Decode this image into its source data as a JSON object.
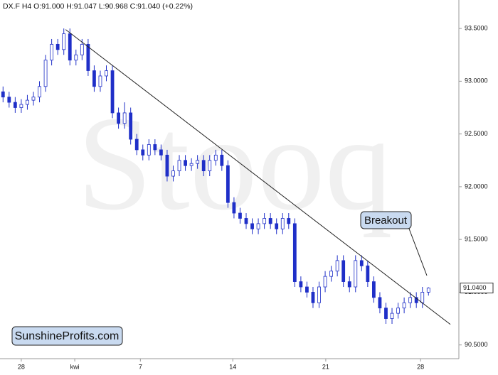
{
  "chart_data": {
    "type": "candlestick",
    "title": "DX.F  H4  O:91.000  H:91.047  L:90.968  C:91.040  (+0.22%)",
    "watermark": "Stooq",
    "color": "#1f2fc8",
    "xlim": [
      -0.5,
      75
    ],
    "xticks": [
      {
        "value": 3,
        "label": "28"
      },
      {
        "value": 11.8,
        "label": "kwi"
      },
      {
        "value": 22.6,
        "label": "7"
      },
      {
        "value": 37.8,
        "label": "14"
      },
      {
        "value": 53.1,
        "label": "21"
      },
      {
        "value": 68.7,
        "label": "28"
      }
    ],
    "ylim": [
      90.37,
      93.77
    ],
    "yticks": [
      {
        "value": 90.5,
        "label": "90.5000"
      },
      {
        "value": 91.0,
        "label": "91.0000"
      },
      {
        "value": 91.5,
        "label": "91.5000"
      },
      {
        "value": 92.0,
        "label": "92.0000"
      },
      {
        "value": 92.5,
        "label": "92.5000"
      },
      {
        "value": 93.0,
        "label": "93.0000"
      },
      {
        "value": 93.5,
        "label": "93.5000"
      }
    ],
    "last_price": {
      "value": 91.04,
      "label": "91.0400"
    },
    "open": [
      92.9,
      92.85,
      92.8,
      92.75,
      92.78,
      92.82,
      92.85,
      92.95,
      93.2,
      93.35,
      93.3,
      93.45,
      93.2,
      93.25,
      93.35,
      93.1,
      92.95,
      93.05,
      93.1,
      92.7,
      92.6,
      92.7,
      92.45,
      92.35,
      92.3,
      92.4,
      92.35,
      92.3,
      92.1,
      92.15,
      92.25,
      92.2,
      92.22,
      92.25,
      92.15,
      92.25,
      92.3,
      92.2,
      91.85,
      91.75,
      91.7,
      91.65,
      91.6,
      91.65,
      91.7,
      91.65,
      91.6,
      91.7,
      91.65,
      91.1,
      91.05,
      91.0,
      90.9,
      91.05,
      91.15,
      91.2,
      91.3,
      91.1,
      91.05,
      91.3,
      91.25,
      91.1,
      90.95,
      90.85,
      90.75,
      90.8,
      90.85,
      90.9,
      90.95,
      90.9,
      91.0
    ],
    "high": [
      92.95,
      92.9,
      92.85,
      92.83,
      92.87,
      92.9,
      93.0,
      93.25,
      93.4,
      93.4,
      93.5,
      93.5,
      93.3,
      93.4,
      93.4,
      93.15,
      93.1,
      93.15,
      93.15,
      92.75,
      92.8,
      92.75,
      92.5,
      92.4,
      92.45,
      92.45,
      92.4,
      92.35,
      92.2,
      92.3,
      92.3,
      92.27,
      92.3,
      92.3,
      92.3,
      92.35,
      92.35,
      92.25,
      91.9,
      91.8,
      91.75,
      91.7,
      91.7,
      91.75,
      91.75,
      91.7,
      91.75,
      91.75,
      91.7,
      91.15,
      91.1,
      91.05,
      91.1,
      91.2,
      91.25,
      91.35,
      91.35,
      91.15,
      91.35,
      91.35,
      91.3,
      91.15,
      91.0,
      90.9,
      90.85,
      90.9,
      90.95,
      91.0,
      91.0,
      91.05,
      91.047
    ],
    "low": [
      92.8,
      92.75,
      92.7,
      92.7,
      92.73,
      92.77,
      92.8,
      92.9,
      93.15,
      93.25,
      93.25,
      93.15,
      93.15,
      93.2,
      93.05,
      92.9,
      92.9,
      93.0,
      92.65,
      92.55,
      92.55,
      92.4,
      92.3,
      92.25,
      92.25,
      92.3,
      92.25,
      92.05,
      92.05,
      92.1,
      92.15,
      92.15,
      92.17,
      92.1,
      92.1,
      92.2,
      92.15,
      91.8,
      91.7,
      91.65,
      91.6,
      91.55,
      91.55,
      91.6,
      91.6,
      91.55,
      91.55,
      91.6,
      91.05,
      91.0,
      90.95,
      90.85,
      90.85,
      91.0,
      91.1,
      91.15,
      91.05,
      91.0,
      91.0,
      91.2,
      91.05,
      90.9,
      90.8,
      90.7,
      90.7,
      90.75,
      90.8,
      90.85,
      90.85,
      90.85,
      90.968
    ],
    "close": [
      92.85,
      92.8,
      92.75,
      92.78,
      92.82,
      92.85,
      92.95,
      93.2,
      93.35,
      93.3,
      93.45,
      93.2,
      93.25,
      93.35,
      93.1,
      92.95,
      93.05,
      93.1,
      92.7,
      92.6,
      92.7,
      92.45,
      92.35,
      92.3,
      92.4,
      92.35,
      92.3,
      92.1,
      92.15,
      92.25,
      92.2,
      92.22,
      92.25,
      92.15,
      92.25,
      92.3,
      92.2,
      91.85,
      91.75,
      91.7,
      91.65,
      91.6,
      91.65,
      91.7,
      91.65,
      91.6,
      91.7,
      91.65,
      91.1,
      91.05,
      91.0,
      90.9,
      91.05,
      91.15,
      91.2,
      91.3,
      91.1,
      91.05,
      91.3,
      91.25,
      91.1,
      90.95,
      90.85,
      90.75,
      90.8,
      90.85,
      90.9,
      90.95,
      90.9,
      91.0,
      91.04
    ],
    "trendline": {
      "x": [
        10.3,
        73.6
      ],
      "y": [
        93.49,
        90.695
      ]
    },
    "annotations": [
      "Breakout",
      "SunshineProfits.com"
    ]
  }
}
